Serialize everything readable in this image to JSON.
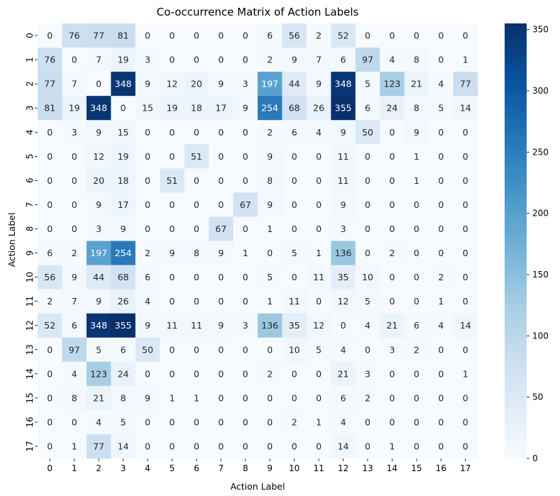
{
  "chart_data": {
    "type": "heatmap",
    "title": "Co-occurrence Matrix of Action Labels",
    "xlabel": "Action Label",
    "ylabel": "Action Label",
    "x_categories": [
      "0",
      "1",
      "2",
      "3",
      "4",
      "5",
      "6",
      "7",
      "8",
      "9",
      "10",
      "11",
      "12",
      "13",
      "14",
      "15",
      "16",
      "17"
    ],
    "y_categories": [
      "0",
      "1",
      "2",
      "3",
      "4",
      "5",
      "6",
      "7",
      "8",
      "9",
      "10",
      "11",
      "12",
      "13",
      "14",
      "15",
      "16",
      "17"
    ],
    "values": [
      [
        0,
        76,
        77,
        81,
        0,
        0,
        0,
        0,
        0,
        6,
        56,
        2,
        52,
        0,
        0,
        0,
        0,
        0
      ],
      [
        76,
        0,
        7,
        19,
        3,
        0,
        0,
        0,
        0,
        2,
        9,
        7,
        6,
        97,
        4,
        8,
        0,
        1
      ],
      [
        77,
        7,
        0,
        348,
        9,
        12,
        20,
        9,
        3,
        197,
        44,
        9,
        348,
        5,
        123,
        21,
        4,
        77
      ],
      [
        81,
        19,
        348,
        0,
        15,
        19,
        18,
        17,
        9,
        254,
        68,
        26,
        355,
        6,
        24,
        8,
        5,
        14
      ],
      [
        0,
        3,
        9,
        15,
        0,
        0,
        0,
        0,
        0,
        2,
        6,
        4,
        9,
        50,
        0,
        9,
        0,
        0
      ],
      [
        0,
        0,
        12,
        19,
        0,
        0,
        51,
        0,
        0,
        9,
        0,
        0,
        11,
        0,
        0,
        1,
        0,
        0
      ],
      [
        0,
        0,
        20,
        18,
        0,
        51,
        0,
        0,
        0,
        8,
        0,
        0,
        11,
        0,
        0,
        1,
        0,
        0
      ],
      [
        0,
        0,
        9,
        17,
        0,
        0,
        0,
        0,
        67,
        9,
        0,
        0,
        9,
        0,
        0,
        0,
        0,
        0
      ],
      [
        0,
        0,
        3,
        9,
        0,
        0,
        0,
        67,
        0,
        1,
        0,
        0,
        3,
        0,
        0,
        0,
        0,
        0
      ],
      [
        6,
        2,
        197,
        254,
        2,
        9,
        8,
        9,
        1,
        0,
        5,
        1,
        136,
        0,
        2,
        0,
        0,
        0
      ],
      [
        56,
        9,
        44,
        68,
        6,
        0,
        0,
        0,
        0,
        5,
        0,
        11,
        35,
        10,
        0,
        0,
        2,
        0
      ],
      [
        2,
        7,
        9,
        26,
        4,
        0,
        0,
        0,
        0,
        1,
        11,
        0,
        12,
        5,
        0,
        0,
        1,
        0
      ],
      [
        52,
        6,
        348,
        355,
        9,
        11,
        11,
        9,
        3,
        136,
        35,
        12,
        0,
        4,
        21,
        6,
        4,
        14
      ],
      [
        0,
        97,
        5,
        6,
        50,
        0,
        0,
        0,
        0,
        0,
        10,
        5,
        4,
        0,
        3,
        2,
        0,
        0
      ],
      [
        0,
        4,
        123,
        24,
        0,
        0,
        0,
        0,
        0,
        2,
        0,
        0,
        21,
        3,
        0,
        0,
        0,
        1
      ],
      [
        0,
        8,
        21,
        8,
        9,
        1,
        1,
        0,
        0,
        0,
        0,
        0,
        6,
        2,
        0,
        0,
        0,
        0
      ],
      [
        0,
        0,
        4,
        5,
        0,
        0,
        0,
        0,
        0,
        0,
        2,
        1,
        4,
        0,
        0,
        0,
        0,
        0
      ],
      [
        0,
        1,
        77,
        14,
        0,
        0,
        0,
        0,
        0,
        0,
        0,
        0,
        14,
        0,
        1,
        0,
        0,
        0
      ]
    ],
    "value_range": [
      0,
      355
    ],
    "colormap": "Blues",
    "colorbar_ticks": [
      0,
      50,
      100,
      150,
      200,
      250,
      300,
      350
    ],
    "annotations": true,
    "grid": false,
    "legend": "colorbar-right"
  }
}
